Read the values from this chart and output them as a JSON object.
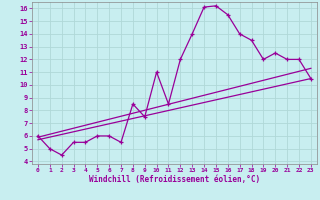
{
  "xlabel": "Windchill (Refroidissement éolien,°C)",
  "xlim": [
    -0.5,
    23.5
  ],
  "ylim": [
    3.8,
    16.5
  ],
  "xticks": [
    0,
    1,
    2,
    3,
    4,
    5,
    6,
    7,
    8,
    9,
    10,
    11,
    12,
    13,
    14,
    15,
    16,
    17,
    18,
    19,
    20,
    21,
    22,
    23
  ],
  "yticks": [
    4,
    5,
    6,
    7,
    8,
    9,
    10,
    11,
    12,
    13,
    14,
    15,
    16
  ],
  "bg_color": "#c8eef0",
  "line_color": "#990099",
  "curve1_x": [
    0,
    1,
    2,
    3,
    4,
    5,
    6,
    7,
    8,
    9,
    10,
    11,
    12,
    13,
    14,
    15,
    16,
    17,
    18,
    19,
    20,
    21,
    22,
    23
  ],
  "curve1_y": [
    6.0,
    5.0,
    4.5,
    5.5,
    5.5,
    6.0,
    6.0,
    5.5,
    8.5,
    7.5,
    11.0,
    8.5,
    12.0,
    14.0,
    16.1,
    16.2,
    15.5,
    14.0,
    13.5,
    12.0,
    12.5,
    12.0,
    12.0,
    10.5
  ],
  "line2_x": [
    0,
    23
  ],
  "line2_y": [
    5.7,
    10.5
  ],
  "line3_x": [
    0,
    23
  ],
  "line3_y": [
    5.9,
    11.3
  ],
  "grid_color": "#b0d8d8",
  "spine_color": "#888888"
}
